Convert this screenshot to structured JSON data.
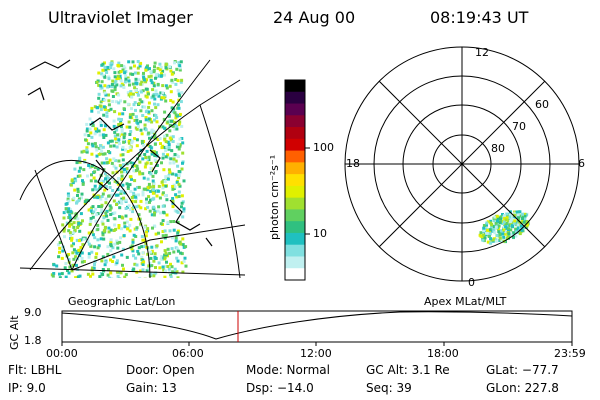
{
  "header": {
    "title": "Ultraviolet Imager",
    "date": "24 Aug 00",
    "time": "08:19:43 UT"
  },
  "geo_map": {
    "caption": "Geographic Lat/Lon"
  },
  "colorbar": {
    "label": "photon cm⁻²s⁻¹",
    "ticks": [
      "100",
      "10"
    ],
    "colors": [
      "#000000",
      "#2a0040",
      "#5a0050",
      "#8a0030",
      "#b00010",
      "#d00000",
      "#ff6000",
      "#ffb000",
      "#ffe000",
      "#e0f000",
      "#a0e030",
      "#60d060",
      "#30c080",
      "#20c0c0",
      "#80e0e0",
      "#c0f0f0",
      "#ffffff"
    ]
  },
  "polar_map": {
    "caption": "Apex MLat/MLT",
    "lat_labels": [
      "60",
      "70",
      "80"
    ],
    "mlt_labels": [
      "12",
      "18",
      "6",
      "0"
    ]
  },
  "altitude_plot": {
    "ylabel": "GC Alt",
    "yticks": [
      "9.0",
      "1.8"
    ],
    "xticks": [
      "00:00",
      "06:00",
      "12:00",
      "18:00",
      "23:59"
    ],
    "current_time_color": "#cc0000"
  },
  "status": {
    "flt": "Flt: LBHL",
    "ip": "IP:  9.0",
    "door": "Door: Open",
    "gain": "Gain: 13",
    "mode": "Mode: Normal",
    "dsp": "Dsp:  −14.0",
    "gcalt": "GC Alt: 3.1 Re",
    "seq": "Seq: 39",
    "glat": "GLat: −77.7",
    "glon": "GLon: 227.8"
  }
}
